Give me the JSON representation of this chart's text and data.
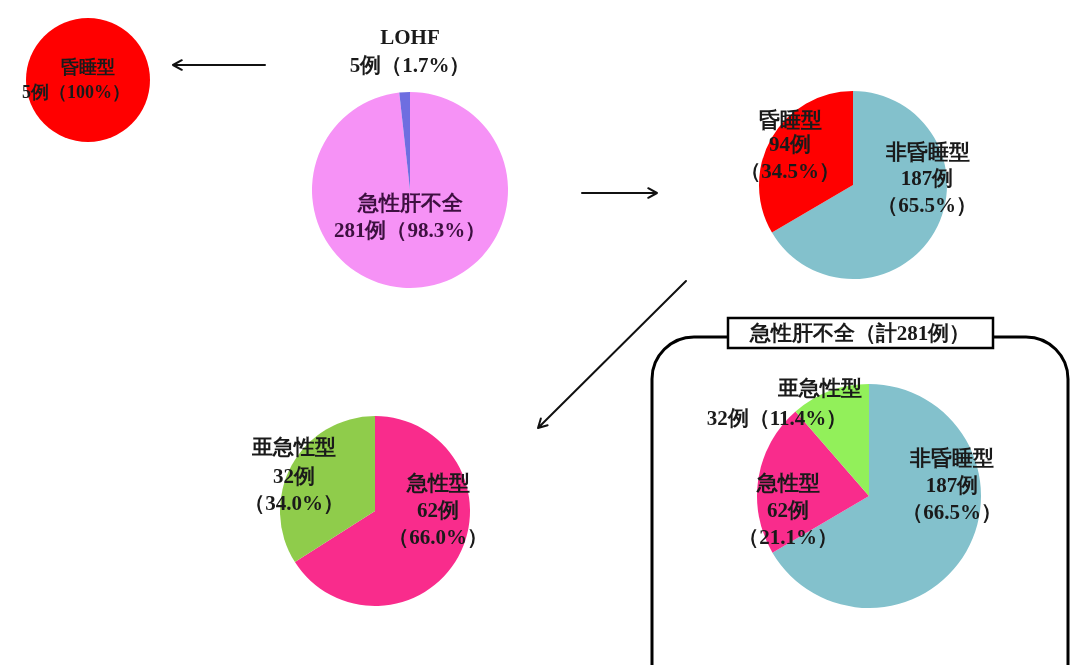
{
  "chart_data": [
    {
      "type": "pie",
      "categories": [
        "昏睡型"
      ],
      "values": [
        5
      ],
      "colors": [
        "#ff0000"
      ],
      "value_labels": [
        "5例（100%）"
      ]
    },
    {
      "type": "pie",
      "categories": [
        "急性肝不全",
        "LOHF"
      ],
      "values": [
        281,
        5
      ],
      "colors": [
        "#f692f6",
        "#6e6ee0"
      ],
      "value_labels": [
        "281例（98.3%）",
        "5例（1.7%）"
      ]
    },
    {
      "type": "pie",
      "categories": [
        "非昏睡型",
        "昏睡型"
      ],
      "values": [
        187,
        94
      ],
      "colors": [
        "#83c1cc",
        "#ff0000"
      ],
      "value_labels": [
        "187例（65.5%）",
        "94例（34.5%）"
      ]
    },
    {
      "type": "pie",
      "categories": [
        "急性型",
        "亜急性型"
      ],
      "values": [
        62,
        32
      ],
      "colors": [
        "#f92c8c",
        "#8fcc4b"
      ],
      "value_labels": [
        "62例（66.0%）",
        "32例（34.0%）"
      ]
    },
    {
      "type": "pie",
      "title": "急性肝不全（計281例）",
      "categories": [
        "非昏睡型",
        "急性型",
        "亜急性型"
      ],
      "values": [
        187,
        62,
        32
      ],
      "colors": [
        "#83c1cc",
        "#f92c8c",
        "#92f05a"
      ],
      "value_labels": [
        "187例（66.5%）",
        "62例（21.1%）",
        "32例（11.4%）"
      ]
    }
  ]
}
